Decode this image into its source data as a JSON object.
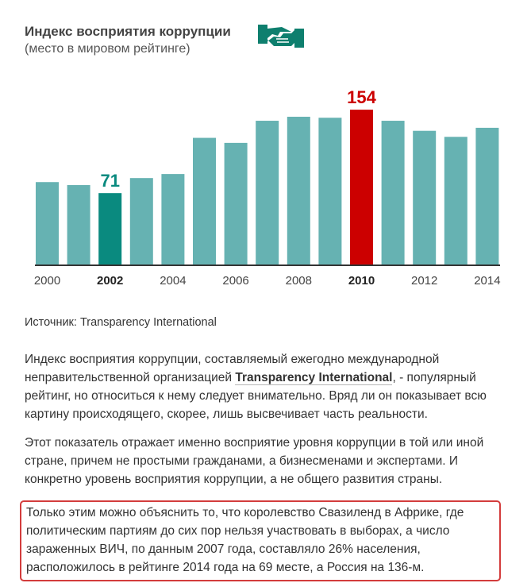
{
  "header": {
    "title": "Индекс восприятия коррупции",
    "subtitle": "(место в мировом рейтинге)",
    "logo_icon": "handshake-icon"
  },
  "colors": {
    "bar": "#66b2b2",
    "highlight_low": "#0a8a7f",
    "highlight_high": "#cc0000",
    "logo": "#0e7f6e"
  },
  "chart_data": {
    "type": "bar",
    "categories": [
      "2000",
      "2001",
      "2002",
      "2003",
      "2004",
      "2005",
      "2006",
      "2007",
      "2008",
      "2009",
      "2010",
      "2011",
      "2012",
      "2013",
      "2014"
    ],
    "values": [
      82,
      79,
      71,
      86,
      90,
      126,
      121,
      143,
      147,
      146,
      154,
      143,
      133,
      127,
      136
    ],
    "tick_labels": [
      "2000",
      "2002",
      "2004",
      "2006",
      "2008",
      "2010",
      "2012",
      "2014"
    ],
    "highlighted": [
      {
        "category": "2002",
        "value": 71,
        "label": "71",
        "color": "#0a8a7f"
      },
      {
        "category": "2010",
        "value": 154,
        "label": "154",
        "color": "#cc0000"
      }
    ],
    "title": "Индекс восприятия коррупции",
    "subtitle": "(место в мировом рейтинге)",
    "ylim": [
      0,
      160
    ],
    "grid": false,
    "legend": "none"
  },
  "source": "Источник: Transparency International",
  "paragraphs": {
    "p1_before": "Индекс восприятия коррупции, составляемый ежегодно международной неправительственной организацией ",
    "p1_org": "Transparency International",
    "p1_after": ", - популярный рейтинг, но относиться к нему следует внимательно. Вряд ли он показывает всю картину происходящего, скорее, лишь высвечивает часть реальности.",
    "p2": "Этот показатель отражает именно восприятие уровня коррупции в той или иной стране, причем не простыми гражданами, а бизнесменами и экспертами. И конкретно уровень восприятия коррупции, а не общего развития страны.",
    "p3": "Только этим можно объяснить то, что королевство Свазиленд в Африке, где политическим партиям до сих пор нельзя участвовать в выборах, а число зараженных ВИЧ, по данным 2007 года, составляло 26% населения, расположилось в рейтинге 2014 года на 69 месте, а Россия на 136-м."
  }
}
